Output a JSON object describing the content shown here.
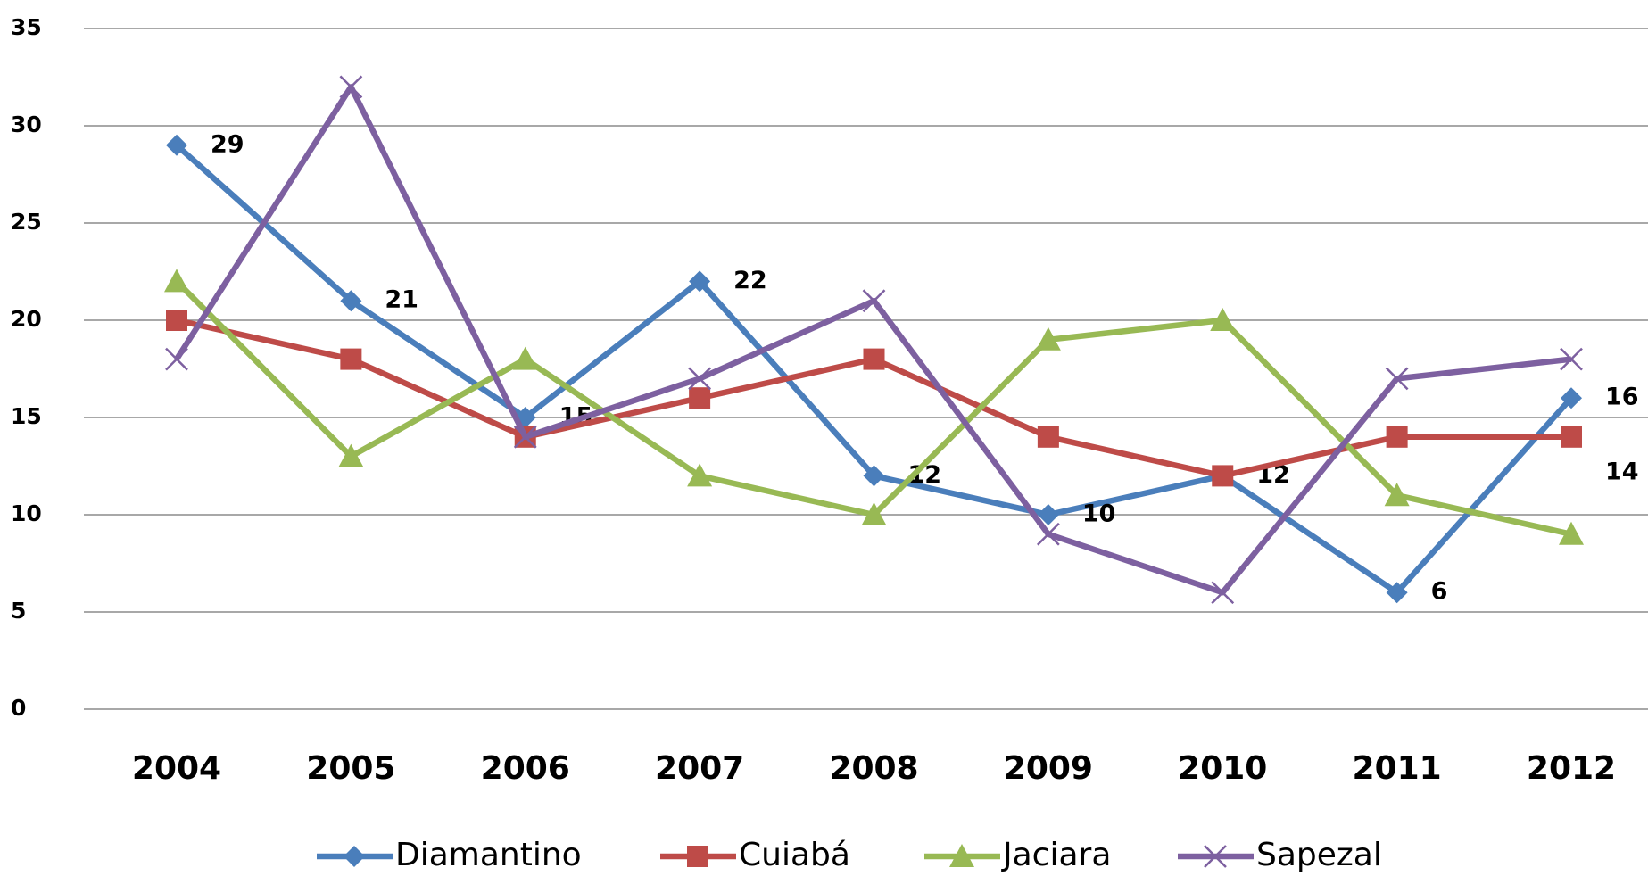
{
  "chart_data": {
    "type": "line",
    "categories": [
      "2004",
      "2005",
      "2006",
      "2007",
      "2008",
      "2009",
      "2010",
      "2011",
      "2012"
    ],
    "series": [
      {
        "name": "Diamantino",
        "color": "#4a7ebb",
        "marker": "diamond",
        "values": [
          29,
          21,
          15,
          22,
          12,
          10,
          12,
          6,
          16
        ],
        "labeled_points": [
          0,
          1,
          2,
          3,
          4,
          5,
          6,
          7,
          8
        ]
      },
      {
        "name": "Cuiabá",
        "color": "#be4b48",
        "marker": "square",
        "values": [
          20,
          18,
          14,
          16,
          18,
          14,
          12,
          14,
          14
        ],
        "labeled_points": [
          8
        ]
      },
      {
        "name": "Jaciara",
        "color": "#98b954",
        "marker": "triangle",
        "values": [
          22,
          13,
          18,
          12,
          10,
          19,
          20,
          11,
          9
        ],
        "labeled_points": []
      },
      {
        "name": "Sapezal",
        "color": "#7d60a0",
        "marker": "x",
        "values": [
          18,
          32,
          14,
          17,
          21,
          9,
          6,
          17,
          18
        ],
        "labeled_points": []
      }
    ],
    "ylim": [
      0,
      35
    ],
    "yticks": [
      0,
      5,
      10,
      15,
      20,
      25,
      30,
      35
    ],
    "grid": true,
    "legend": "bottom"
  }
}
